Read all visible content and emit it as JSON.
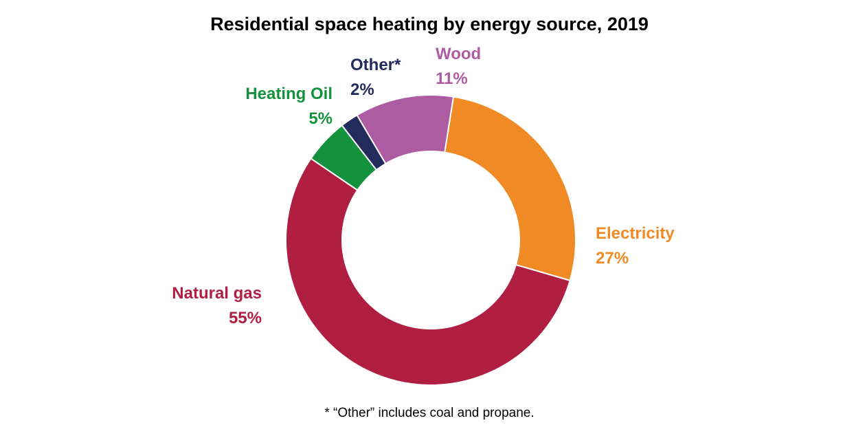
{
  "chart_data": {
    "type": "pie",
    "title": "Residential space heating by energy source, 2019",
    "start_angle_deg": 81,
    "categories": [
      "Electricity",
      "Natural gas",
      "Heating Oil",
      "Other*",
      "Wood"
    ],
    "values": [
      27,
      55,
      5,
      2,
      11
    ],
    "value_labels": [
      "27%",
      "55%",
      "5%",
      "2%",
      "11%"
    ],
    "colors": [
      "#F08A24",
      "#B01E42",
      "#14913C",
      "#232A5C",
      "#AE5CA1"
    ],
    "footnote": "* “Other” includes coal and propane."
  }
}
